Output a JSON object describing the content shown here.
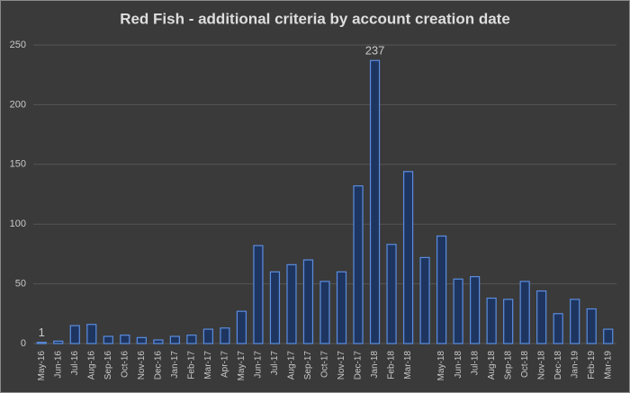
{
  "chart_data": {
    "type": "bar",
    "title": "Red Fish - additional criteria by account creation date",
    "categories": [
      "May-16",
      "Jun-16",
      "Jul-16",
      "Aug-16",
      "Sep-16",
      "Oct-16",
      "Nov-16",
      "Dec-16",
      "Jan-17",
      "Feb-17",
      "Mar-17",
      "Apr-17",
      "May-17",
      "Jun-17",
      "Jul-17",
      "Aug-17",
      "Sep-17",
      "Oct-17",
      "Nov-17",
      "Dec-17",
      "Jan-18",
      "Feb-18",
      "Mar-18",
      null,
      "May-18",
      "Jun-18",
      "Jul-18",
      "Aug-18",
      "Sep-18",
      "Oct-18",
      "Nov-18",
      "Dec-18",
      "Jan-19",
      "Feb-19",
      "Mar-19"
    ],
    "values": [
      1,
      2,
      15,
      16,
      6,
      7,
      5,
      3,
      6,
      7,
      12,
      13,
      27,
      82,
      60,
      66,
      70,
      52,
      60,
      132,
      237,
      83,
      144,
      72,
      90,
      54,
      56,
      38,
      37,
      52,
      44,
      25,
      37,
      29,
      12
    ],
    "value_labels": [
      "1",
      null,
      null,
      null,
      null,
      null,
      null,
      null,
      null,
      null,
      null,
      null,
      null,
      null,
      null,
      null,
      null,
      null,
      null,
      null,
      "237",
      null,
      null,
      null,
      null,
      null,
      null,
      null,
      null,
      null,
      null,
      null,
      null,
      null,
      null
    ],
    "color": "#1e3560",
    "edge_color": "#5b8de0",
    "ylim": [
      0,
      250
    ],
    "yticks": [
      0,
      50,
      100,
      150,
      200,
      250
    ],
    "grid": true
  }
}
